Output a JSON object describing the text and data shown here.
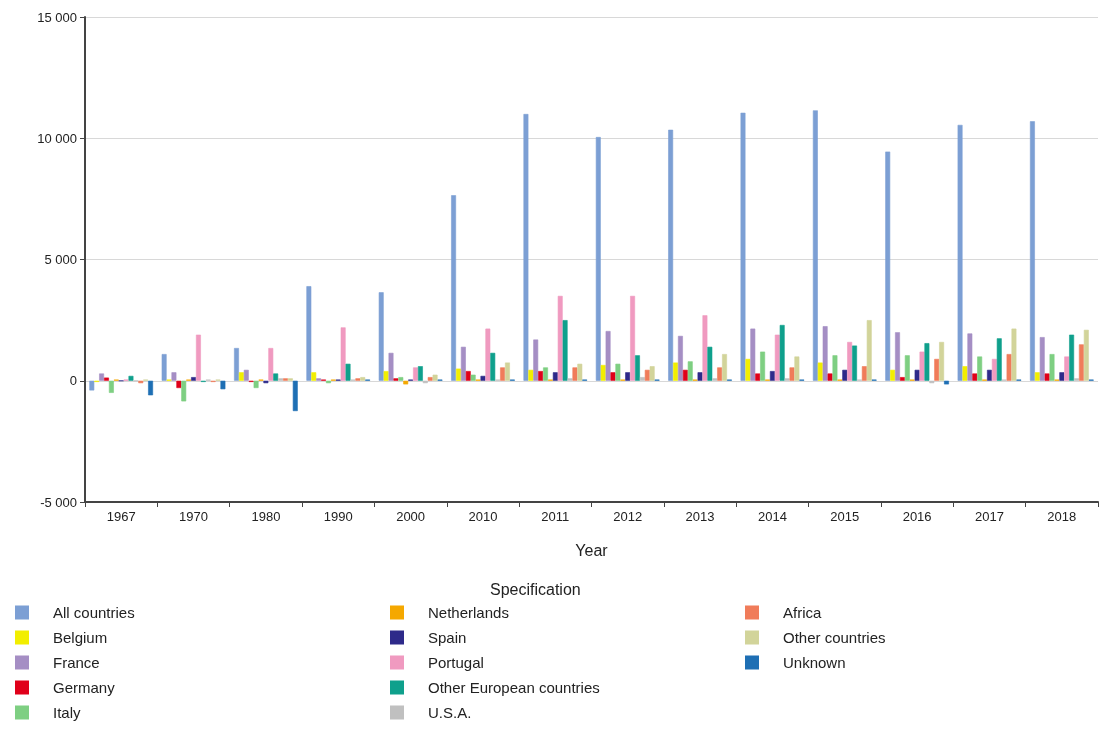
{
  "chart_data": {
    "type": "bar",
    "xlabel": "Year",
    "legend_title": "Specification",
    "categories": [
      "1967",
      "1970",
      "1980",
      "1990",
      "2000",
      "2010",
      "2011",
      "2012",
      "2013",
      "2014",
      "2015",
      "2016",
      "2017",
      "2018"
    ],
    "ylim": [
      -5000,
      15000
    ],
    "yticks": [
      {
        "value": -5000,
        "label": "-5 000"
      },
      0,
      {
        "value": 5000,
        "label": "5 000"
      },
      {
        "value": 10000,
        "label": "10 000"
      },
      {
        "value": 15000,
        "label": "15 000"
      }
    ],
    "grid": "y",
    "legend": "bottom",
    "series": [
      {
        "name": "All countries",
        "color": "#7c9fd4",
        "values": [
          -400,
          1100,
          1350,
          3900,
          3650,
          7650,
          11000,
          10050,
          10350,
          11050,
          11150,
          9450,
          10550,
          10700
        ]
      },
      {
        "name": "Belgium",
        "color": "#f2ee00",
        "values": [
          -50,
          50,
          350,
          350,
          400,
          500,
          450,
          650,
          750,
          900,
          750,
          450,
          600,
          350
        ]
      },
      {
        "name": "France",
        "color": "#a58ec4",
        "values": [
          300,
          350,
          450,
          100,
          1150,
          1400,
          1700,
          2050,
          1850,
          2150,
          2250,
          2000,
          1950,
          1800
        ]
      },
      {
        "name": "Germany",
        "color": "#e0001a",
        "values": [
          130,
          -300,
          -50,
          50,
          100,
          400,
          400,
          350,
          450,
          300,
          300,
          150,
          300,
          300
        ]
      },
      {
        "name": "Italy",
        "color": "#7ecf82",
        "values": [
          -500,
          -850,
          -300,
          -100,
          150,
          250,
          550,
          700,
          800,
          1200,
          1050,
          1050,
          1000,
          1100
        ]
      },
      {
        "name": "Netherlands",
        "color": "#f5a800",
        "values": [
          50,
          50,
          50,
          50,
          -150,
          50,
          50,
          50,
          50,
          50,
          50,
          50,
          50,
          50
        ]
      },
      {
        "name": "Spain",
        "color": "#2e2a8a",
        "values": [
          0,
          150,
          -100,
          50,
          50,
          200,
          350,
          350,
          350,
          400,
          450,
          450,
          450,
          350
        ]
      },
      {
        "name": "Portugal",
        "color": "#f09ac0",
        "values": [
          50,
          1900,
          1350,
          2200,
          550,
          2150,
          3500,
          3500,
          2700,
          1900,
          1600,
          1200,
          900,
          1000
        ]
      },
      {
        "name": "Other European countries",
        "color": "#0fa08c",
        "values": [
          200,
          -50,
          300,
          700,
          600,
          1150,
          2500,
          1050,
          1400,
          2300,
          1450,
          1550,
          1750,
          1900
        ]
      },
      {
        "name": "U.S.A.",
        "color": "#c0c0c0",
        "values": [
          0,
          50,
          100,
          50,
          -100,
          50,
          100,
          150,
          100,
          100,
          50,
          -100,
          50,
          100
        ]
      },
      {
        "name": "Africa",
        "color": "#f07c5a",
        "values": [
          -100,
          -50,
          100,
          100,
          150,
          550,
          550,
          450,
          550,
          550,
          600,
          900,
          1100,
          1500
        ]
      },
      {
        "name": "Other countries",
        "color": "#d2d49a",
        "values": [
          50,
          50,
          100,
          150,
          250,
          750,
          700,
          600,
          1100,
          1000,
          2500,
          1600,
          2150,
          2100
        ]
      },
      {
        "name": "Unknown",
        "color": "#1e6fb4",
        "values": [
          -600,
          -350,
          -1250,
          50,
          50,
          50,
          50,
          50,
          50,
          50,
          50,
          -150,
          50,
          50
        ]
      }
    ]
  }
}
